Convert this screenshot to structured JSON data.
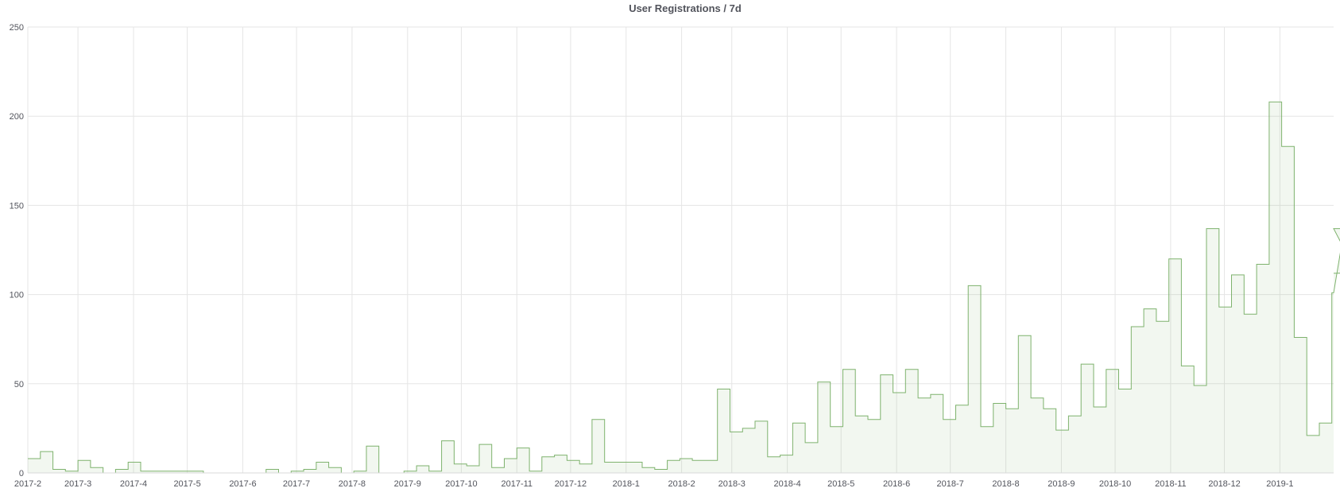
{
  "panel": {
    "title": "User Registrations / 7d"
  },
  "colors": {
    "series": "#7eb26d",
    "fill": "rgba(126,178,109,0.1)",
    "grid": "#e5e5e5",
    "text": "#52545c"
  },
  "chart_data": {
    "type": "line",
    "interpolation": "step",
    "title": "User Registrations / 7d",
    "xlabel": "",
    "ylabel": "",
    "ylim": [
      0,
      250
    ],
    "yticks": [
      0,
      50,
      100,
      150,
      200,
      250
    ],
    "xtick_labels": [
      "2017-2",
      "2017-3",
      "2017-4",
      "2017-5",
      "2017-6",
      "2017-7",
      "2017-8",
      "2017-9",
      "2017-10",
      "2017-11",
      "2017-12",
      "2018-1",
      "2018-2",
      "2018-3",
      "2018-4",
      "2018-5",
      "2018-6",
      "2018-7",
      "2018-8",
      "2018-9",
      "2018-10",
      "2018-11",
      "2018-12",
      "2019-1"
    ],
    "xlim": [
      "2017-02-01",
      "2019-01-31"
    ],
    "x_start": "2017-02-01",
    "interval_days": 7,
    "grid": true,
    "legend": "none",
    "series": [
      {
        "values": [
          8,
          12,
          2,
          1,
          7,
          3,
          0,
          2,
          6,
          1,
          1,
          1,
          1,
          1,
          0,
          0,
          0,
          0,
          0,
          2,
          0,
          1,
          2,
          6,
          3,
          0,
          1,
          15,
          0,
          0,
          1,
          4,
          1,
          18,
          5,
          4,
          16,
          3,
          8,
          14,
          1,
          9,
          10,
          7,
          5,
          30,
          6,
          6,
          6,
          3,
          2,
          7,
          8,
          7,
          7,
          47,
          23,
          25,
          29,
          9,
          10,
          28,
          17,
          51,
          26,
          58,
          32,
          30,
          55,
          45,
          58,
          42,
          44,
          30,
          38,
          105,
          26,
          39,
          36,
          77,
          42,
          36,
          24,
          32,
          61,
          37,
          58,
          47,
          82,
          92,
          85,
          120,
          60,
          49,
          137,
          93,
          111,
          89,
          117,
          208,
          183,
          76,
          21,
          28,
          101,
          137,
          112
        ]
      }
    ]
  }
}
